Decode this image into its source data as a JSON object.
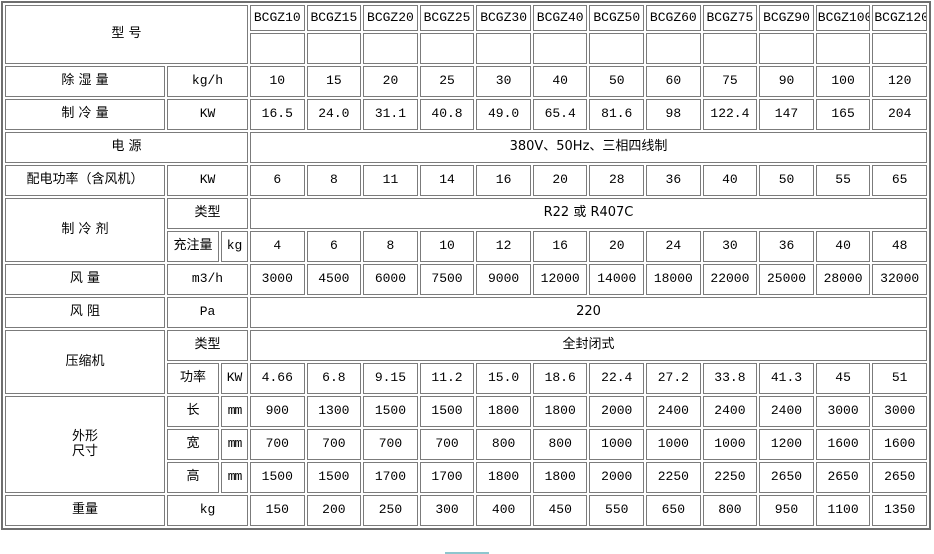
{
  "colors": {
    "table_outer_border": "#6e6e6e",
    "cell_border": "#7b7b7b",
    "background": "#ffffff",
    "text": "#000000",
    "scrollbar_accent": "#8ec6ce"
  },
  "table": {
    "grid": [
      [
        {
          "t": "型  号",
          "cs": 3,
          "rs": 2,
          "cls": "label vtop",
          "name": "models-label-cell"
        },
        {
          "t": "BCGZ10",
          "cls": "model",
          "name": "model-header-cell"
        },
        {
          "t": "BCGZ15",
          "cls": "model",
          "name": "model-header-cell"
        },
        {
          "t": "BCGZ20",
          "cls": "model",
          "name": "model-header-cell"
        },
        {
          "t": "BCGZ25",
          "cls": "model",
          "name": "model-header-cell"
        },
        {
          "t": "BCGZ30",
          "cls": "model",
          "name": "model-header-cell"
        },
        {
          "t": "BCGZ40",
          "cls": "model",
          "name": "model-header-cell"
        },
        {
          "t": "BCGZ50",
          "cls": "model",
          "name": "model-header-cell"
        },
        {
          "t": "BCGZ60",
          "cls": "model",
          "name": "model-header-cell"
        },
        {
          "t": "BCGZ75",
          "cls": "model",
          "name": "model-header-cell"
        },
        {
          "t": "BCGZ90",
          "cls": "model",
          "name": "model-header-cell"
        },
        {
          "t": "BCGZ100",
          "cls": "model",
          "name": "model-header-cell"
        },
        {
          "t": "BCGZ120",
          "cls": "model",
          "name": "model-header-cell"
        }
      ],
      [
        {
          "t": "",
          "cls": "value",
          "name": "spacer-cell"
        },
        {
          "t": "",
          "cls": "value",
          "name": "spacer-cell"
        },
        {
          "t": "",
          "cls": "value",
          "name": "spacer-cell"
        },
        {
          "t": "",
          "cls": "value",
          "name": "spacer-cell"
        },
        {
          "t": "",
          "cls": "value",
          "name": "spacer-cell"
        },
        {
          "t": "",
          "cls": "value",
          "name": "spacer-cell"
        },
        {
          "t": "",
          "cls": "value",
          "name": "spacer-cell"
        },
        {
          "t": "",
          "cls": "value",
          "name": "spacer-cell"
        },
        {
          "t": "",
          "cls": "value",
          "name": "spacer-cell"
        },
        {
          "t": "",
          "cls": "value",
          "name": "spacer-cell"
        },
        {
          "t": "",
          "cls": "value",
          "name": "spacer-cell"
        },
        {
          "t": "",
          "cls": "value",
          "name": "spacer-cell"
        }
      ],
      [
        {
          "t": "除 湿 量",
          "cls": "label",
          "name": "spec-label-cell"
        },
        {
          "t": "kg/h",
          "cs": 2,
          "cls": "unit",
          "name": "unit-cell"
        },
        {
          "t": "10"
        },
        {
          "t": "15"
        },
        {
          "t": "20"
        },
        {
          "t": "25"
        },
        {
          "t": "30"
        },
        {
          "t": "40"
        },
        {
          "t": "50"
        },
        {
          "t": "60"
        },
        {
          "t": "75"
        },
        {
          "t": "90"
        },
        {
          "t": "100"
        },
        {
          "t": "120"
        }
      ],
      [
        {
          "t": "制 冷 量",
          "cls": "label",
          "name": "spec-label-cell"
        },
        {
          "t": "KW",
          "cs": 2,
          "cls": "unit",
          "name": "unit-cell"
        },
        {
          "t": "16.5"
        },
        {
          "t": "24.0"
        },
        {
          "t": "31.1"
        },
        {
          "t": "40.8"
        },
        {
          "t": "49.0"
        },
        {
          "t": "65.4"
        },
        {
          "t": "81.6"
        },
        {
          "t": "98"
        },
        {
          "t": "122.4"
        },
        {
          "t": "147"
        },
        {
          "t": "165"
        },
        {
          "t": "204"
        }
      ],
      [
        {
          "t": "电  源",
          "cs": 3,
          "cls": "label",
          "name": "spec-label-cell"
        },
        {
          "t": "380V、50Hz、三相四线制",
          "cs": 12,
          "cls": "merged",
          "name": "merged-value-cell"
        }
      ],
      [
        {
          "t": "配电功率（含风机）",
          "cls": "label",
          "name": "spec-label-cell"
        },
        {
          "t": "KW",
          "cs": 2,
          "cls": "unit",
          "name": "unit-cell"
        },
        {
          "t": "6"
        },
        {
          "t": "8"
        },
        {
          "t": "11"
        },
        {
          "t": "14"
        },
        {
          "t": "16"
        },
        {
          "t": "20"
        },
        {
          "t": "28"
        },
        {
          "t": "36"
        },
        {
          "t": "40"
        },
        {
          "t": "50"
        },
        {
          "t": "55"
        },
        {
          "t": "65"
        }
      ],
      [
        {
          "t": "制 冷 剂",
          "rs": 2,
          "cls": "label",
          "name": "spec-label-cell"
        },
        {
          "t": "类型",
          "cs": 2,
          "cls": "sublabel",
          "name": "sub-label-cell"
        },
        {
          "t": "R22 或 R407C",
          "cs": 12,
          "cls": "merged",
          "name": "merged-value-cell"
        }
      ],
      [
        {
          "t": "充注量",
          "cls": "sublabel",
          "name": "sub-label-cell"
        },
        {
          "t": "kg",
          "cls": "unit",
          "name": "unit-cell"
        },
        {
          "t": "4"
        },
        {
          "t": "6"
        },
        {
          "t": "8"
        },
        {
          "t": "10"
        },
        {
          "t": "12"
        },
        {
          "t": "16"
        },
        {
          "t": "20"
        },
        {
          "t": "24"
        },
        {
          "t": "30"
        },
        {
          "t": "36"
        },
        {
          "t": "40"
        },
        {
          "t": "48"
        }
      ],
      [
        {
          "t": "风 量",
          "cls": "label",
          "name": "spec-label-cell"
        },
        {
          "t": "m3/h",
          "cs": 2,
          "cls": "unit",
          "name": "unit-cell"
        },
        {
          "t": "3000"
        },
        {
          "t": "4500"
        },
        {
          "t": "6000"
        },
        {
          "t": "7500"
        },
        {
          "t": "9000"
        },
        {
          "t": "12000"
        },
        {
          "t": "14000"
        },
        {
          "t": "18000"
        },
        {
          "t": "22000"
        },
        {
          "t": "25000"
        },
        {
          "t": "28000"
        },
        {
          "t": "32000"
        }
      ],
      [
        {
          "t": "风 阻",
          "cls": "label",
          "name": "spec-label-cell"
        },
        {
          "t": "Pa",
          "cs": 2,
          "cls": "unit",
          "name": "unit-cell"
        },
        {
          "t": "220",
          "cs": 12,
          "cls": "merged",
          "name": "merged-value-cell"
        }
      ],
      [
        {
          "t": "压缩机",
          "rs": 2,
          "cls": "label",
          "name": "spec-label-cell"
        },
        {
          "t": "类型",
          "cs": 2,
          "cls": "sublabel",
          "name": "sub-label-cell"
        },
        {
          "t": "全封闭式",
          "cs": 12,
          "cls": "merged",
          "name": "merged-value-cell"
        }
      ],
      [
        {
          "t": "功率",
          "cls": "sublabel",
          "name": "sub-label-cell"
        },
        {
          "t": "KW",
          "cls": "unit",
          "name": "unit-cell"
        },
        {
          "t": "4.66"
        },
        {
          "t": "6.8"
        },
        {
          "t": "9.15"
        },
        {
          "t": "11.2"
        },
        {
          "t": "15.0"
        },
        {
          "t": "18.6"
        },
        {
          "t": "22.4"
        },
        {
          "t": "27.2"
        },
        {
          "t": "33.8"
        },
        {
          "t": "41.3"
        },
        {
          "t": "45"
        },
        {
          "t": "51"
        }
      ],
      [
        {
          "t": "外形\n尺寸",
          "rs": 3,
          "cls": "label multiline",
          "name": "spec-label-cell"
        },
        {
          "t": "长",
          "cls": "sublabel",
          "name": "sub-label-cell"
        },
        {
          "t": "mm",
          "cls": "tiny",
          "name": "unit-cell"
        },
        {
          "t": "900"
        },
        {
          "t": "1300"
        },
        {
          "t": "1500"
        },
        {
          "t": "1500"
        },
        {
          "t": "1800"
        },
        {
          "t": "1800"
        },
        {
          "t": "2000"
        },
        {
          "t": "2400"
        },
        {
          "t": "2400"
        },
        {
          "t": "2400"
        },
        {
          "t": "3000"
        },
        {
          "t": "3000"
        }
      ],
      [
        {
          "t": "宽",
          "cls": "sublabel",
          "name": "sub-label-cell"
        },
        {
          "t": "mm",
          "cls": "tiny",
          "name": "unit-cell"
        },
        {
          "t": "700"
        },
        {
          "t": "700"
        },
        {
          "t": "700"
        },
        {
          "t": "700"
        },
        {
          "t": "800"
        },
        {
          "t": "800"
        },
        {
          "t": "1000"
        },
        {
          "t": "1000"
        },
        {
          "t": "1000"
        },
        {
          "t": "1200"
        },
        {
          "t": "1600"
        },
        {
          "t": "1600"
        }
      ],
      [
        {
          "t": "高",
          "cls": "sublabel",
          "name": "sub-label-cell"
        },
        {
          "t": "mm",
          "cls": "tiny",
          "name": "unit-cell"
        },
        {
          "t": "1500"
        },
        {
          "t": "1500"
        },
        {
          "t": "1700"
        },
        {
          "t": "1700"
        },
        {
          "t": "1800"
        },
        {
          "t": "1800"
        },
        {
          "t": "2000"
        },
        {
          "t": "2250"
        },
        {
          "t": "2250"
        },
        {
          "t": "2650"
        },
        {
          "t": "2650"
        },
        {
          "t": "2650"
        }
      ],
      [
        {
          "t": "重量",
          "cls": "label",
          "name": "spec-label-cell"
        },
        {
          "t": "kg",
          "cs": 2,
          "cls": "unit",
          "name": "unit-cell"
        },
        {
          "t": "150"
        },
        {
          "t": "200"
        },
        {
          "t": "250"
        },
        {
          "t": "300"
        },
        {
          "t": "400"
        },
        {
          "t": "450"
        },
        {
          "t": "550"
        },
        {
          "t": "650"
        },
        {
          "t": "800"
        },
        {
          "t": "950"
        },
        {
          "t": "1100"
        },
        {
          "t": "1350"
        }
      ]
    ]
  }
}
